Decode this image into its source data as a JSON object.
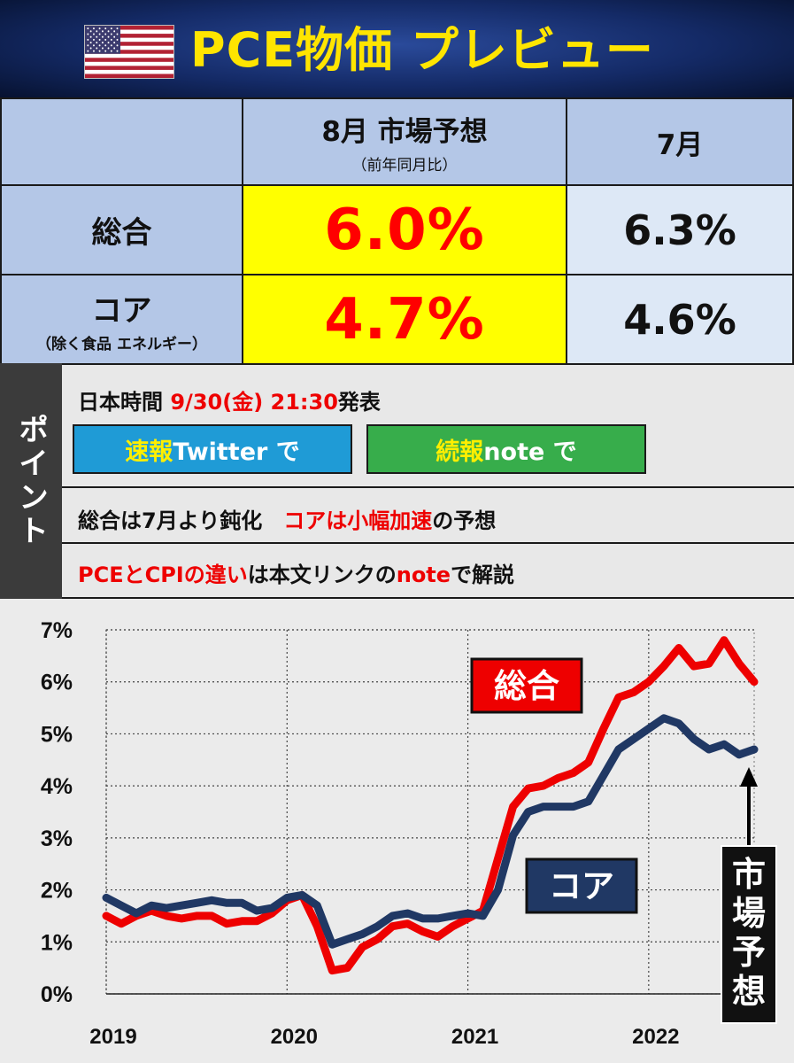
{
  "header": {
    "title": "PCE物価 プレビュー",
    "flag_icon": "us-flag-icon"
  },
  "table": {
    "col_forecast_title": "8月 市場予想",
    "col_forecast_sub": "（前年同月比）",
    "col_prev_title": "7月",
    "rows": [
      {
        "label": "総合",
        "sublabel": "",
        "forecast": "6.0%",
        "previous": "6.3%"
      },
      {
        "label": "コア",
        "sublabel": "（除く食品 エネルギー）",
        "forecast": "4.7%",
        "previous": "4.6%"
      }
    ]
  },
  "points": {
    "side_label": "ポイント",
    "release_prefix": "日本時間 ",
    "release_time": "9/30(金) 21:30",
    "release_suffix": "発表",
    "twitter_btn_a": "速報",
    "twitter_btn_b": " Twitter で",
    "note_btn_a": "続報",
    "note_btn_b": " note で",
    "line2_a": "総合は7月より鈍化　",
    "line2_b": "コアは小幅加速",
    "line2_c": "の予想",
    "line3_a": "PCEとCPIの違い",
    "line3_b": "は本文リンクの",
    "line3_c": "note",
    "line3_d": "で解説"
  },
  "colors": {
    "headline": "#ee0000",
    "core": "#203864",
    "yellow_cell": "#ffff00",
    "blue_cell": "#b4c7e7",
    "twitter": "#1f9bd6",
    "note": "#37ad4b"
  },
  "chart_data": {
    "type": "line",
    "x_ticks": [
      "2019",
      "2020",
      "2021",
      "2022"
    ],
    "y_ticks": [
      "7%",
      "6%",
      "5%",
      "4%",
      "3%",
      "2%",
      "1%",
      "0%"
    ],
    "ylim": [
      0,
      7
    ],
    "xlim": [
      "2019-01",
      "2022-08"
    ],
    "grid": true,
    "series": [
      {
        "name": "総合",
        "color": "#ee0000",
        "values": [
          1.5,
          1.35,
          1.5,
          1.6,
          1.5,
          1.45,
          1.5,
          1.5,
          1.35,
          1.4,
          1.4,
          1.55,
          1.8,
          1.9,
          1.3,
          0.45,
          0.5,
          0.9,
          1.05,
          1.3,
          1.35,
          1.2,
          1.1,
          1.3,
          1.45,
          1.6,
          2.6,
          3.6,
          3.95,
          4.0,
          4.15,
          4.25,
          4.45,
          5.1,
          5.7,
          5.8,
          6.0,
          6.3,
          6.65,
          6.3,
          6.35,
          6.8,
          6.35,
          6.0
        ],
        "end_label": "6.0%"
      },
      {
        "name": "コア",
        "color": "#203864",
        "values": [
          1.85,
          1.7,
          1.55,
          1.7,
          1.65,
          1.7,
          1.75,
          1.8,
          1.75,
          1.75,
          1.6,
          1.65,
          1.85,
          1.9,
          1.7,
          0.95,
          1.05,
          1.15,
          1.3,
          1.5,
          1.55,
          1.45,
          1.45,
          1.5,
          1.55,
          1.5,
          2.0,
          3.05,
          3.5,
          3.6,
          3.6,
          3.6,
          3.7,
          4.2,
          4.7,
          4.9,
          5.1,
          5.3,
          5.2,
          4.9,
          4.7,
          4.8,
          4.6,
          4.7
        ],
        "end_label": "4.7%"
      }
    ],
    "annotations": {
      "headline_label": "総合",
      "core_label": "コア",
      "forecast_label": "市場予想"
    }
  }
}
